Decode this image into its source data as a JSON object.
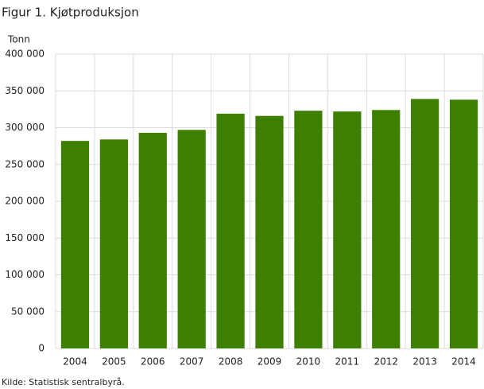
{
  "chart_data": {
    "type": "bar",
    "title": "Figur 1. Kjøtproduksjon",
    "y_label": "Tonn",
    "source": "Kilde: Statistisk sentralbyrå.",
    "categories": [
      "2004",
      "2005",
      "2006",
      "2007",
      "2008",
      "2009",
      "2010",
      "2011",
      "2012",
      "2013",
      "2014"
    ],
    "values": [
      282000,
      284000,
      293000,
      297000,
      319000,
      316000,
      323000,
      322000,
      324000,
      339000,
      338000
    ],
    "color": "#3d7f00",
    "ylim": [
      0,
      400000
    ],
    "yticks": [
      0,
      {
        "value": 50000,
        "label": "50 000"
      },
      {
        "value": 100000,
        "label": "100 000"
      },
      {
        "value": 150000,
        "label": "150 000"
      },
      {
        "value": 200000,
        "label": "200 000"
      },
      {
        "value": 250000,
        "label": "250 000"
      },
      {
        "value": 300000,
        "label": "300 000"
      },
      {
        "value": 350000,
        "label": "350 000"
      },
      {
        "value": 400000,
        "label": "400 000"
      }
    ],
    "grid": true
  }
}
